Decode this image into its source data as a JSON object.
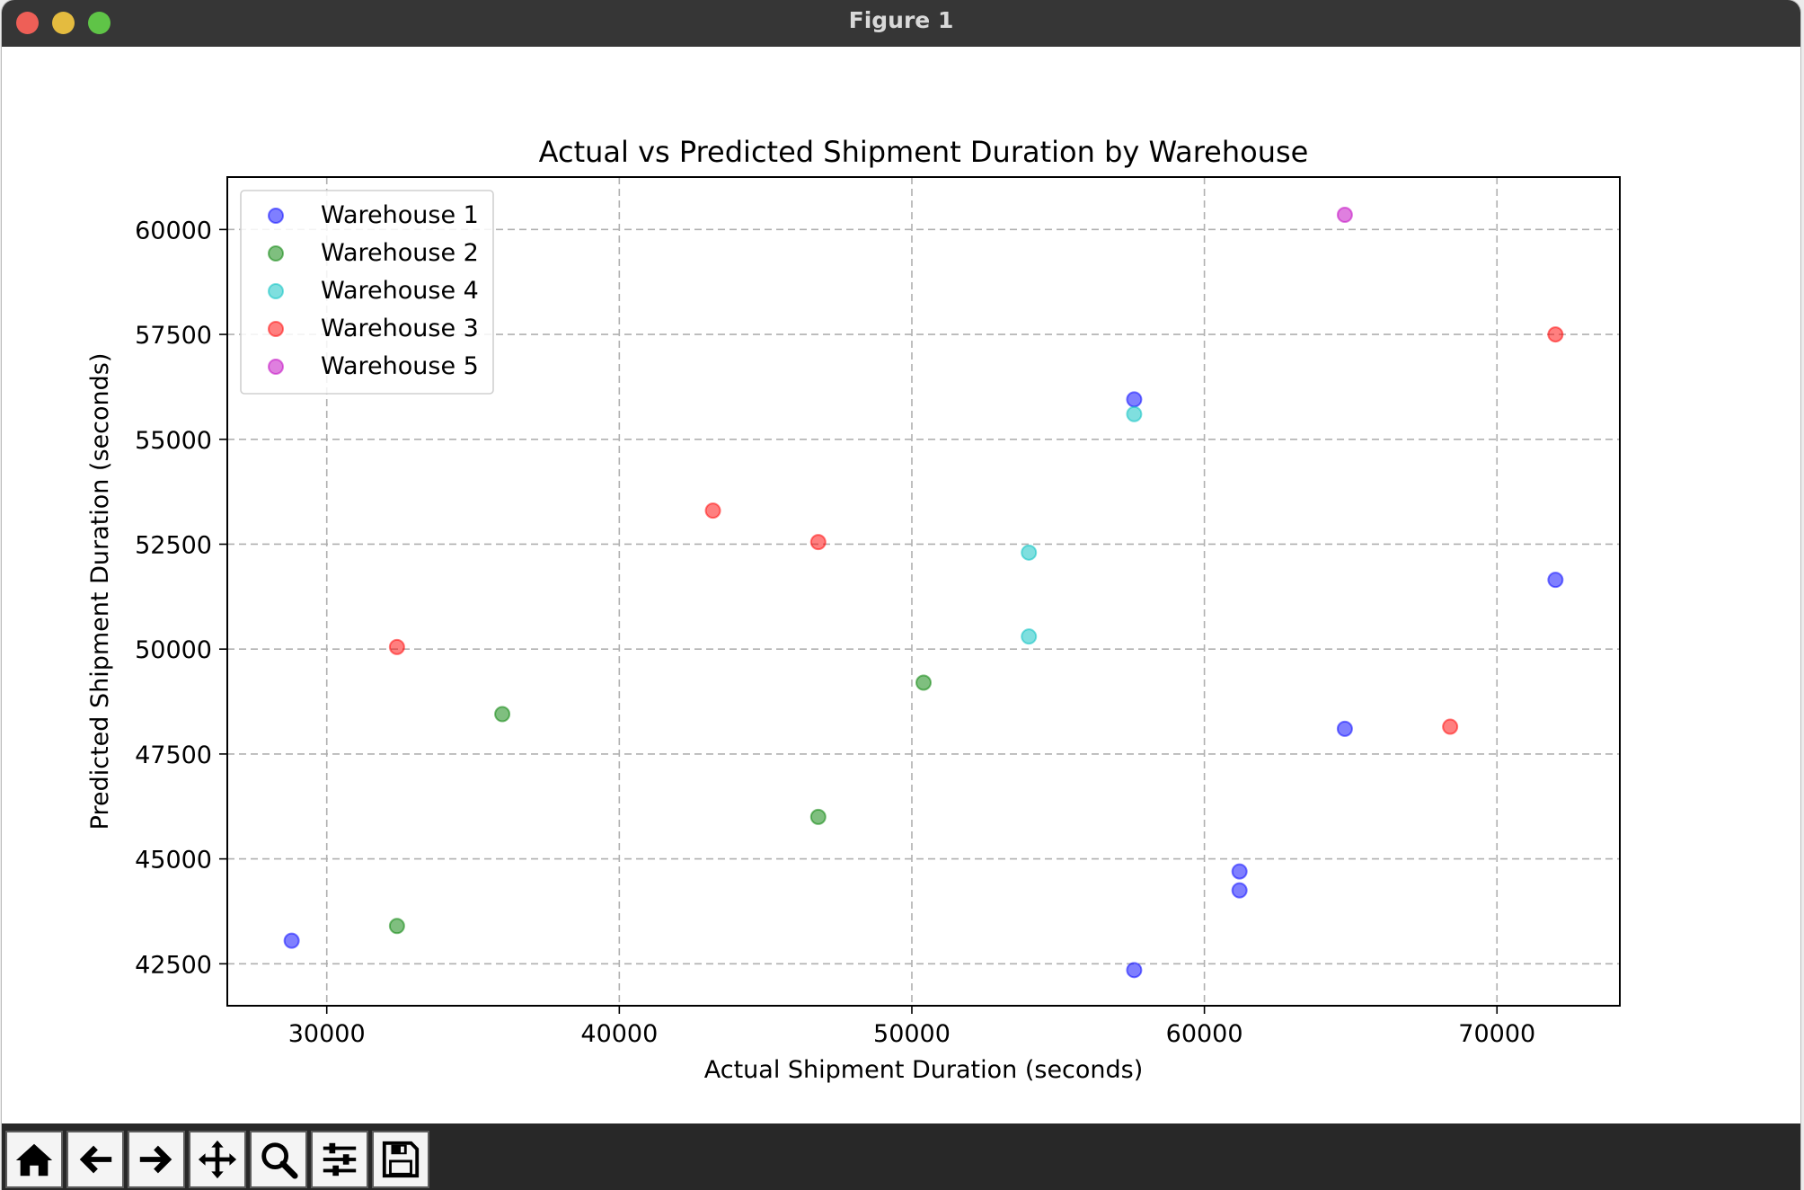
{
  "window": {
    "title": "Figure 1"
  },
  "toolbar": {
    "buttons": [
      {
        "name": "home-button",
        "icon": "home-icon"
      },
      {
        "name": "back-button",
        "icon": "arrow-left-icon"
      },
      {
        "name": "forward-button",
        "icon": "arrow-right-icon"
      },
      {
        "name": "pan-button",
        "icon": "move-icon"
      },
      {
        "name": "zoom-button",
        "icon": "magnifier-icon"
      },
      {
        "name": "configure-subplots-button",
        "icon": "sliders-icon"
      },
      {
        "name": "save-button",
        "icon": "floppy-disk-icon"
      }
    ]
  },
  "chart_data": {
    "type": "scatter",
    "title": "Actual vs Predicted Shipment Duration by Warehouse",
    "xlabel": "Actual Shipment Duration (seconds)",
    "ylabel": "Predicted Shipment Duration (seconds)",
    "xlim": [
      26600,
      74200
    ],
    "ylim": [
      41500,
      61250
    ],
    "xticks": [
      30000,
      40000,
      50000,
      60000,
      70000
    ],
    "yticks": [
      42500,
      45000,
      47500,
      50000,
      52500,
      55000,
      57500,
      60000
    ],
    "grid": true,
    "legend_position": "upper-left",
    "series": [
      {
        "name": "Warehouse 1",
        "color": "#0000ff",
        "points": [
          [
            28800,
            43050
          ],
          [
            57600,
            55950
          ],
          [
            57600,
            42350
          ],
          [
            61200,
            44700
          ],
          [
            61200,
            44250
          ],
          [
            64800,
            48100
          ],
          [
            72000,
            51650
          ]
        ]
      },
      {
        "name": "Warehouse 2",
        "color": "#008000",
        "points": [
          [
            32400,
            43400
          ],
          [
            36000,
            48450
          ],
          [
            46800,
            46000
          ],
          [
            50400,
            49200
          ]
        ]
      },
      {
        "name": "Warehouse 4",
        "color": "#00bfbf",
        "points": [
          [
            57600,
            55600
          ],
          [
            54000,
            52300
          ],
          [
            54000,
            50300
          ]
        ]
      },
      {
        "name": "Warehouse 3",
        "color": "#ff0000",
        "points": [
          [
            32400,
            50050
          ],
          [
            43200,
            53300
          ],
          [
            46800,
            52550
          ],
          [
            68400,
            48150
          ],
          [
            72000,
            57500
          ]
        ]
      },
      {
        "name": "Warehouse 5",
        "color": "#bf00bf",
        "points": [
          [
            64800,
            60350
          ]
        ]
      }
    ]
  }
}
